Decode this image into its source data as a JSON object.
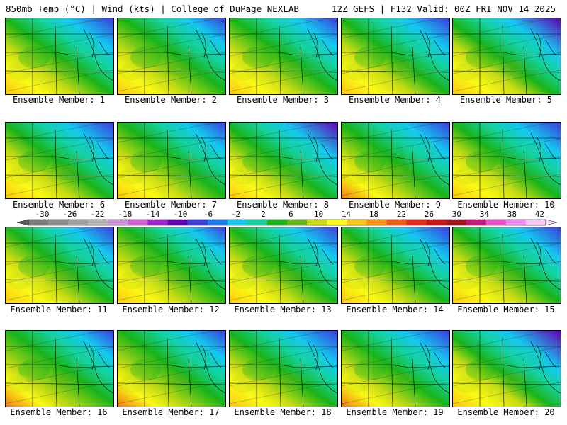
{
  "header": {
    "title_left": "850mb Temp (°C) | Wind (kts) | College of DuPage NEXLAB",
    "title_right": "12Z GEFS | F132 Valid: 00Z FRI NOV 14 2025"
  },
  "panels": [
    {
      "label": "Ensemble Member: 1",
      "cold": 0.55,
      "warm": 0.35
    },
    {
      "label": "Ensemble Member: 2",
      "cold": 0.25,
      "warm": 0.45
    },
    {
      "label": "Ensemble Member: 3",
      "cold": 0.4,
      "warm": 0.4
    },
    {
      "label": "Ensemble Member: 4",
      "cold": 0.55,
      "warm": 0.25
    },
    {
      "label": "Ensemble Member: 5",
      "cold": 0.85,
      "warm": 0.25
    },
    {
      "label": "Ensemble Member: 6",
      "cold": 0.65,
      "warm": 0.35
    },
    {
      "label": "Ensemble Member: 7",
      "cold": 0.35,
      "warm": 0.4
    },
    {
      "label": "Ensemble Member: 8",
      "cold": 0.85,
      "warm": 0.55
    },
    {
      "label": "Ensemble Member: 9",
      "cold": 0.55,
      "warm": 0.6
    },
    {
      "label": "Ensemble Member: 10",
      "cold": 0.55,
      "warm": 0.2
    },
    {
      "label": "Ensemble Member: 11",
      "cold": 0.45,
      "warm": 0.3
    },
    {
      "label": "Ensemble Member: 12",
      "cold": 0.2,
      "warm": 0.45
    },
    {
      "label": "Ensemble Member: 13",
      "cold": 0.5,
      "warm": 0.4
    },
    {
      "label": "Ensemble Member: 14",
      "cold": 0.6,
      "warm": 0.4
    },
    {
      "label": "Ensemble Member: 15",
      "cold": 0.5,
      "warm": 0.3
    },
    {
      "label": "Ensemble Member: 16",
      "cold": 0.3,
      "warm": 0.7
    },
    {
      "label": "Ensemble Member: 17",
      "cold": 0.35,
      "warm": 0.6
    },
    {
      "label": "Ensemble Member: 18",
      "cold": 0.65,
      "warm": 0.55
    },
    {
      "label": "Ensemble Member: 19",
      "cold": 0.6,
      "warm": 0.6
    },
    {
      "label": "Ensemble Member: 20",
      "cold": 0.95,
      "warm": 0.2
    }
  ],
  "colorbar": {
    "ticks": [
      "-30",
      "-26",
      "-22",
      "-18",
      "-14",
      "-10",
      "-6",
      "-2",
      "2",
      "6",
      "10",
      "14",
      "18",
      "22",
      "26",
      "30",
      "34",
      "38",
      "42"
    ],
    "colors": [
      "#7a7a7a",
      "#8c8c8c",
      "#a0a0a0",
      "#b4b4b4",
      "#c896d2",
      "#d25fd2",
      "#a020c8",
      "#6400b4",
      "#3c3cdc",
      "#1e78f0",
      "#14c8f0",
      "#14d2a0",
      "#19b419",
      "#64b419",
      "#c8dc14",
      "#fafa14",
      "#fac814",
      "#fa9614",
      "#f05a14",
      "#e12814",
      "#c81414",
      "#a0141e",
      "#c81478",
      "#e650c8",
      "#f08cf0",
      "#f5c8f5"
    ]
  }
}
